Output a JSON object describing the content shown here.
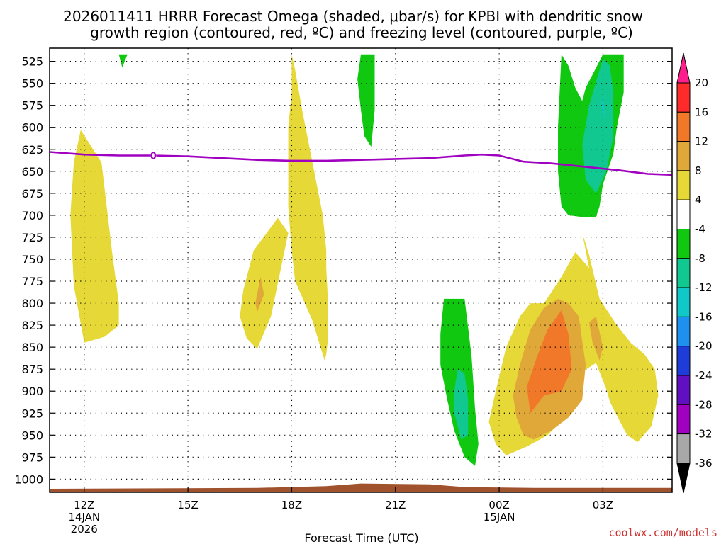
{
  "chart_data": {
    "type": "heatmap",
    "title_line1": "2026011411 HRRR Forecast Omega (shaded, μbar/s) for KPBI with dendritic snow",
    "title_line2": "growth region (contoured, red, ºC) and freezing level (contoured, purple, ºC)",
    "xlabel": "Forecast Time (UTC)",
    "credit": "coolwx.com/models",
    "credit_color": "#cc3333",
    "x_unit": "hours since 2026-01-14 11Z",
    "xlim": [
      11,
      29
    ],
    "ylim_hpa": [
      510,
      1015
    ],
    "y_ticks": [
      "525",
      "550",
      "575",
      "600",
      "625",
      "650",
      "675",
      "700",
      "725",
      "750",
      "775",
      "800",
      "825",
      "850",
      "875",
      "900",
      "925",
      "950",
      "975",
      "1000"
    ],
    "x_ticks": [
      {
        "hour": 12,
        "line1": "12Z",
        "line2": "14JAN",
        "line3": "2026"
      },
      {
        "hour": 15,
        "line1": "15Z"
      },
      {
        "hour": 18,
        "line1": "18Z"
      },
      {
        "hour": 21,
        "line1": "21Z"
      },
      {
        "hour": 24,
        "line1": "00Z",
        "line2": "15JAN"
      },
      {
        "hour": 27,
        "line1": "03Z"
      }
    ],
    "colorbar": {
      "labels": [
        "20",
        "16",
        "12",
        "8",
        "4",
        "-4",
        "-8",
        "-12",
        "-16",
        "-20",
        "-24",
        "-28",
        "-32",
        "-36"
      ],
      "colors": [
        "#ff1f8c",
        "#ff2a2a",
        "#f07828",
        "#e0a838",
        "#e6d836",
        "#ffffff",
        "#11c811",
        "#11c890",
        "#11c8c8",
        "#1e90f0",
        "#1e3cd8",
        "#6010c0",
        "#a000c0",
        "#a8a8a8",
        "#000000"
      ]
    },
    "freezing_level": {
      "label": "0",
      "color": "#a000c0",
      "hours": [
        11,
        12,
        13,
        14,
        15,
        16,
        17,
        18,
        19,
        20,
        21,
        22,
        23,
        23.5,
        24,
        24.7,
        25.5,
        26.5,
        27.5,
        28.3,
        29
      ],
      "hpa": [
        628,
        631,
        632,
        632,
        633,
        635,
        637,
        638,
        638,
        637,
        636,
        635,
        632,
        631,
        632,
        639,
        641,
        645,
        649,
        653,
        654
      ]
    },
    "omega_regions": [
      {
        "level": 4,
        "color": "#e6d836",
        "hours": [
          12.0,
          11.7,
          11.6,
          11.7,
          11.9,
          12.5,
          12.8,
          13.0,
          13.0,
          12.6,
          12.0
        ],
        "hpa": [
          845,
          780,
          700,
          640,
          603,
          640,
          740,
          800,
          825,
          838,
          845
        ]
      },
      {
        "level": 4,
        "color": "#e6d836",
        "hours": [
          18.0,
          18.1,
          18.3,
          18.6,
          18.9,
          19.0,
          19.0,
          19.05,
          19.05,
          19.0,
          18.95,
          18.6,
          18.1,
          18.0,
          17.9,
          17.9,
          18.0
        ],
        "hpa": [
          517,
          535,
          580,
          640,
          700,
          740,
          760,
          800,
          840,
          858,
          865,
          820,
          775,
          740,
          690,
          600,
          560
        ]
      },
      {
        "level": 4,
        "color": "#e6d836",
        "hours": [
          17.6,
          16.9,
          16.6,
          16.5,
          16.7,
          17.0,
          17.4,
          17.9,
          17.6
        ],
        "hpa": [
          703,
          740,
          785,
          815,
          840,
          852,
          815,
          720,
          703
        ]
      },
      {
        "level": 4,
        "color": "#e6d836",
        "hours": [
          24.6,
          24.2,
          23.9,
          23.7,
          23.9,
          24.2,
          24.8,
          25.4,
          25.9,
          26.2,
          26.4,
          26.8,
          27.1,
          27.2,
          27.3,
          27.5,
          27.7,
          28.0,
          28.4,
          28.6,
          28.5,
          28.2,
          27.8,
          27.4,
          26.9,
          26.6,
          26.4,
          26.6,
          26.2,
          25.8,
          25.3,
          24.9,
          24.6
        ],
        "hpa": [
          815,
          850,
          900,
          935,
          960,
          973,
          963,
          950,
          930,
          910,
          878,
          868,
          898,
          912,
          920,
          935,
          950,
          958,
          940,
          905,
          875,
          858,
          845,
          825,
          795,
          745,
          720,
          760,
          742,
          770,
          800,
          800,
          815
        ]
      },
      {
        "level": 8,
        "color": "#e0a838",
        "hours": [
          25.7,
          25.3,
          24.9,
          24.6,
          24.4,
          24.5,
          24.7,
          25.0,
          25.5,
          26.0,
          26.4,
          26.5,
          26.3,
          26.0,
          25.7
        ],
        "hpa": [
          795,
          805,
          830,
          870,
          905,
          930,
          950,
          955,
          945,
          930,
          910,
          870,
          815,
          800,
          795
        ]
      },
      {
        "level": 8,
        "color": "#e0a838",
        "hours": [
          26.8,
          26.6,
          26.7,
          26.9,
          27.0,
          26.8
        ],
        "hpa": [
          815,
          822,
          845,
          865,
          850,
          815
        ]
      },
      {
        "level": 8,
        "color": "#e0a838",
        "hours": [
          17.1,
          16.95,
          17.0,
          17.2,
          17.1
        ],
        "hpa": [
          770,
          800,
          810,
          790,
          770
        ]
      },
      {
        "level": 12,
        "color": "#f07828",
        "hours": [
          25.8,
          25.4,
          25.1,
          24.8,
          24.9,
          25.3,
          25.8,
          26.1,
          26.0,
          25.8
        ],
        "hpa": [
          808,
          830,
          860,
          895,
          925,
          905,
          900,
          875,
          835,
          808
        ]
      },
      {
        "level": -4,
        "color": "#11c811",
        "hours": [
          20.0,
          19.9,
          20.0,
          20.1,
          20.3,
          20.4,
          20.4,
          20.0
        ],
        "hpa": [
          517,
          545,
          580,
          610,
          622,
          580,
          517,
          517
        ]
      },
      {
        "level": -4,
        "color": "#11c811",
        "hours": [
          13.0,
          13.1,
          13.25,
          13.2,
          13.0
        ],
        "hpa": [
          517,
          532,
          517,
          517,
          517
        ]
      },
      {
        "level": -4,
        "color": "#11c811",
        "hours": [
          25.8,
          25.7,
          25.7,
          25.8,
          26.0,
          26.4,
          26.8,
          26.9,
          27.0,
          27.3,
          27.4,
          27.6,
          27.6,
          27.3,
          27.0,
          26.7,
          26.5,
          26.4,
          26.2,
          26.0,
          25.8
        ],
        "hpa": [
          517,
          600,
          650,
          690,
          700,
          702,
          702,
          690,
          665,
          630,
          600,
          560,
          517,
          517,
          517,
          540,
          555,
          570,
          555,
          530,
          517
        ]
      },
      {
        "level": -4,
        "color": "#11c811",
        "hours": [
          22.4,
          22.3,
          22.3,
          22.5,
          22.7,
          23.0,
          23.3,
          23.4,
          23.3,
          23.2,
          23.0,
          22.4
        ],
        "hpa": [
          795,
          835,
          870,
          910,
          945,
          975,
          985,
          960,
          920,
          860,
          795,
          795
        ]
      },
      {
        "level": -8,
        "color": "#11c890",
        "hours": [
          27.0,
          26.6,
          26.4,
          26.5,
          26.8,
          27.1,
          27.3,
          27.3,
          27.2,
          27.0
        ],
        "hpa": [
          522,
          575,
          620,
          660,
          675,
          650,
          610,
          560,
          530,
          522
        ]
      },
      {
        "level": -8,
        "color": "#11c890",
        "hours": [
          22.8,
          22.7,
          22.7,
          22.9,
          23.1,
          23.1,
          23.0,
          22.8
        ],
        "hpa": [
          875,
          900,
          925,
          955,
          950,
          910,
          880,
          875
        ]
      },
      {
        "level": -12,
        "color": "#11c8c8",
        "hours": [
          27.0,
          26.95,
          27.05,
          27.0
        ],
        "hpa": [
          560,
          575,
          590,
          560
        ]
      }
    ],
    "terrain": {
      "color": "#a0522d",
      "hours": [
        11,
        17,
        19,
        20,
        22,
        23,
        25,
        29
      ],
      "hpa": [
        1011,
        1010,
        1008,
        1005,
        1006,
        1009,
        1010,
        1010
      ]
    }
  }
}
